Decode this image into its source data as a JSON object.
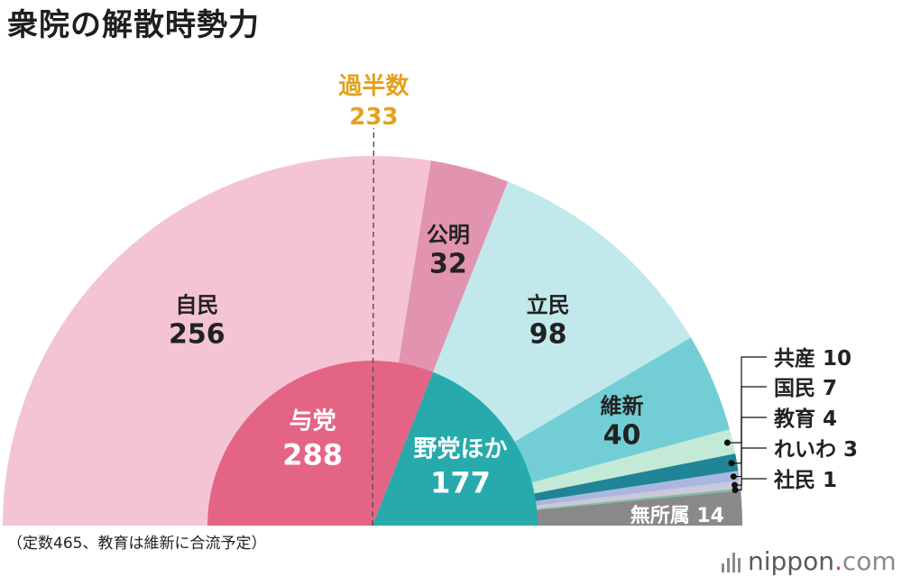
{
  "title": "衆院の解散時勢力",
  "footnote": "（定数465、教育は維新に合流予定）",
  "logo": {
    "name": "nippon",
    "dot": ".",
    "tld": "com"
  },
  "chart_data": {
    "type": "pie",
    "total": 465,
    "majority": {
      "label": "過半数",
      "value": 233
    },
    "outer": [
      {
        "name": "自民",
        "value": 256,
        "color": "#f4c4d4"
      },
      {
        "name": "公明",
        "value": 32,
        "color": "#e293b0"
      },
      {
        "name": "立民",
        "value": 98,
        "color": "#c1e9eb"
      },
      {
        "name": "維新",
        "value": 40,
        "color": "#72ced4"
      },
      {
        "name": "共産",
        "value": 10,
        "color": "#c4ead7"
      },
      {
        "name": "国民",
        "value": 7,
        "color": "#1f8596"
      },
      {
        "name": "教育",
        "value": 4,
        "color": "#a9b7e0"
      },
      {
        "name": "れいわ",
        "value": 3,
        "color": "#c9c9d9"
      },
      {
        "name": "社民",
        "value": 1,
        "color": "#7ebda0"
      },
      {
        "name": "無所属",
        "value": 14,
        "color": "#898989"
      }
    ],
    "inner": [
      {
        "name": "与党",
        "value": 288,
        "color": "#e46486"
      },
      {
        "name": "野党ほか",
        "value": 177,
        "color": "#27aaab"
      }
    ]
  }
}
